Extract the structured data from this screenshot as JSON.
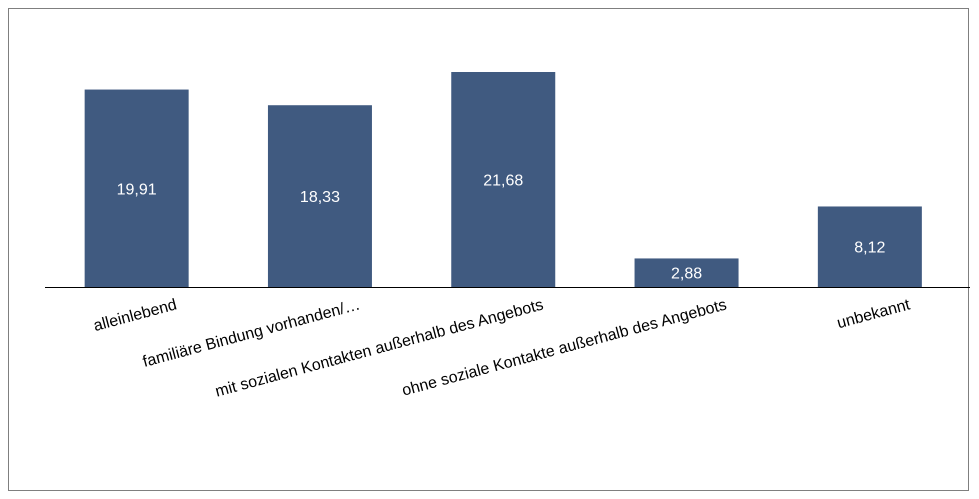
{
  "chart_data": {
    "type": "bar",
    "categories": [
      "alleinlebend",
      "familiäre Bindung vorhanden/…",
      "mit sozialen Kontakten außerhalb des Angebots",
      "ohne soziale Kontakte außerhalb des Angebots",
      "unbekannt"
    ],
    "values": [
      19.91,
      18.33,
      21.68,
      2.88,
      8.12
    ],
    "value_labels": [
      "19,91",
      "18,33",
      "21,68",
      "2,88",
      "8,12"
    ],
    "title": "",
    "xlabel": "",
    "ylabel": "",
    "ylim": [
      0,
      21.68
    ],
    "grid": false,
    "legend": "none",
    "colors": {
      "bar": "#405a80",
      "frame": "#7f7f7f",
      "axis": "#000000"
    }
  }
}
